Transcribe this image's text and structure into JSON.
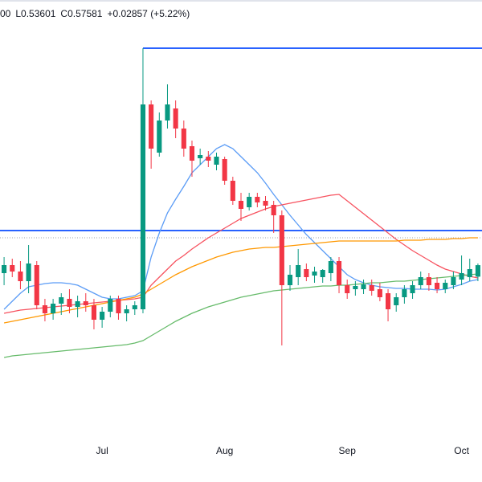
{
  "chart_data": {
    "type": "candlestick",
    "ohlc_legend": [
      "00",
      "L0.53601",
      "C0.57581",
      "+0.02857 (+5.22%)"
    ],
    "categories": [
      null,
      null,
      null,
      null,
      null,
      null,
      null,
      null,
      null,
      null,
      null,
      null,
      "Jul",
      null,
      null,
      null,
      null,
      null,
      null,
      null,
      null,
      null,
      null,
      null,
      null,
      null,
      null,
      "Aug",
      null,
      null,
      null,
      null,
      null,
      null,
      null,
      null,
      null,
      null,
      null,
      null,
      null,
      null,
      "Sep",
      null,
      null,
      null,
      null,
      null,
      null,
      null,
      null,
      null,
      null,
      null,
      null,
      null,
      "Oct",
      null,
      null
    ],
    "open": [
      0.556,
      0.576,
      0.56,
      0.536,
      0.576,
      0.476,
      0.456,
      0.48,
      0.492,
      0.472,
      0.486,
      0.476,
      0.44,
      0.46,
      0.492,
      0.456,
      0.466,
      0.466,
      0.976,
      0.856,
      0.936,
      0.966,
      0.916,
      0.872,
      0.842,
      0.846,
      0.826,
      0.84,
      0.786,
      0.736,
      0.72,
      0.746,
      0.736,
      0.726,
      0.7,
      0.526,
      0.546,
      0.566,
      0.55,
      0.546,
      0.556,
      0.586,
      0.526,
      0.516,
      0.516,
      0.526,
      0.516,
      0.506,
      0.476,
      0.496,
      0.506,
      0.526,
      0.546,
      0.532,
      0.516,
      0.526,
      0.54,
      0.546,
      0.54724
    ],
    "high": [
      0.596,
      0.592,
      0.586,
      0.626,
      0.586,
      0.492,
      0.492,
      0.506,
      0.516,
      0.5,
      0.506,
      0.492,
      0.472,
      0.5,
      0.5,
      0.476,
      0.486,
      1.116,
      0.986,
      0.956,
      1.026,
      0.986,
      0.936,
      0.886,
      0.866,
      0.86,
      0.856,
      0.846,
      0.796,
      0.756,
      0.756,
      0.756,
      0.748,
      0.736,
      0.712,
      0.576,
      0.616,
      0.58,
      0.572,
      0.566,
      0.596,
      0.596,
      0.54,
      0.536,
      0.54,
      0.54,
      0.532,
      0.516,
      0.506,
      0.526,
      0.536,
      0.56,
      0.556,
      0.546,
      0.54,
      0.56,
      0.6,
      0.592,
      0.58
    ],
    "low": [
      0.526,
      0.546,
      0.516,
      0.506,
      0.466,
      0.436,
      0.44,
      0.452,
      0.456,
      0.446,
      0.46,
      0.416,
      0.42,
      0.446,
      0.44,
      0.436,
      0.452,
      0.456,
      0.816,
      0.846,
      0.916,
      0.892,
      0.846,
      0.796,
      0.826,
      0.82,
      0.812,
      0.776,
      0.726,
      0.686,
      0.712,
      0.72,
      0.712,
      0.656,
      0.376,
      0.512,
      0.526,
      0.536,
      0.532,
      0.532,
      0.536,
      0.506,
      0.492,
      0.5,
      0.504,
      0.5,
      0.486,
      0.436,
      0.46,
      0.48,
      0.492,
      0.516,
      0.512,
      0.506,
      0.506,
      0.516,
      0.526,
      0.536,
      0.53601
    ],
    "close": [
      0.576,
      0.56,
      0.536,
      0.58,
      0.476,
      0.456,
      0.48,
      0.496,
      0.472,
      0.486,
      0.476,
      0.44,
      0.46,
      0.492,
      0.456,
      0.466,
      0.476,
      0.976,
      0.866,
      0.936,
      0.976,
      0.916,
      0.866,
      0.836,
      0.85,
      0.836,
      0.846,
      0.786,
      0.736,
      0.716,
      0.746,
      0.732,
      0.724,
      0.7,
      0.526,
      0.552,
      0.576,
      0.546,
      0.56,
      0.564,
      0.586,
      0.526,
      0.506,
      0.524,
      0.528,
      0.512,
      0.496,
      0.466,
      0.496,
      0.516,
      0.526,
      0.546,
      0.526,
      0.516,
      0.532,
      0.546,
      0.556,
      0.566,
      0.57581
    ],
    "up_color": "#089981",
    "down_color": "#f23645",
    "series": [
      {
        "color": "#5b9cf6",
        "values": [
          0.466,
          0.486,
          0.506,
          0.522,
          0.526,
          0.53,
          0.532,
          0.532,
          0.53,
          0.526,
          0.516,
          0.506,
          0.496,
          0.492,
          0.492,
          0.496,
          0.5,
          0.512,
          0.596,
          0.656,
          0.706,
          0.74,
          0.772,
          0.806,
          0.826,
          0.846,
          0.866,
          0.876,
          0.866,
          0.846,
          0.826,
          0.806,
          0.78,
          0.752,
          0.726,
          0.7,
          0.676,
          0.652,
          0.632,
          0.612,
          0.592,
          0.572,
          0.552,
          0.54,
          0.532,
          0.526,
          0.522,
          0.52,
          0.518,
          0.518,
          0.516,
          0.516,
          0.516,
          0.514,
          0.516,
          0.522,
          0.528,
          0.536,
          0.54
        ]
      },
      {
        "color": "#f7525f",
        "values": [
          0.456,
          0.46,
          0.464,
          0.466,
          0.468,
          0.47,
          0.472,
          0.474,
          0.476,
          0.478,
          0.48,
          0.482,
          0.484,
          0.486,
          0.488,
          0.49,
          0.492,
          0.496,
          0.526,
          0.546,
          0.566,
          0.586,
          0.6,
          0.616,
          0.63,
          0.644,
          0.656,
          0.668,
          0.68,
          0.692,
          0.7,
          0.708,
          0.716,
          0.722,
          0.726,
          0.73,
          0.734,
          0.738,
          0.742,
          0.746,
          0.75,
          0.752,
          0.736,
          0.72,
          0.704,
          0.688,
          0.672,
          0.656,
          0.64,
          0.626,
          0.612,
          0.6,
          0.588,
          0.576,
          0.566,
          0.56,
          0.554,
          0.548,
          0.544
        ]
      },
      {
        "color": "#ff9800",
        "values": [
          0.432,
          0.436,
          0.44,
          0.444,
          0.448,
          0.452,
          0.456,
          0.46,
          0.464,
          0.468,
          0.472,
          0.476,
          0.48,
          0.484,
          0.488,
          0.492,
          0.496,
          0.504,
          0.516,
          0.528,
          0.54,
          0.552,
          0.562,
          0.572,
          0.58,
          0.588,
          0.596,
          0.602,
          0.608,
          0.612,
          0.616,
          0.618,
          0.62,
          0.62,
          0.622,
          0.624,
          0.626,
          0.628,
          0.63,
          0.632,
          0.634,
          0.636,
          0.636,
          0.636,
          0.636,
          0.636,
          0.636,
          0.636,
          0.636,
          0.638,
          0.638,
          0.638,
          0.64,
          0.64,
          0.64,
          0.642,
          0.642,
          0.644,
          0.644
        ]
      },
      {
        "color": "#66bb6a",
        "values": [
          0.346,
          0.35,
          0.352,
          0.354,
          0.356,
          0.358,
          0.36,
          0.362,
          0.364,
          0.366,
          0.368,
          0.37,
          0.372,
          0.374,
          0.376,
          0.378,
          0.382,
          0.388,
          0.4,
          0.412,
          0.424,
          0.436,
          0.446,
          0.456,
          0.464,
          0.472,
          0.478,
          0.484,
          0.49,
          0.496,
          0.5,
          0.504,
          0.508,
          0.512,
          0.514,
          0.516,
          0.518,
          0.52,
          0.522,
          0.524,
          0.524,
          0.526,
          0.526,
          0.528,
          0.53,
          0.532,
          0.532,
          0.534,
          0.536,
          0.536,
          0.538,
          0.54,
          0.542,
          0.544,
          0.546,
          0.548,
          0.55,
          0.552,
          0.554
        ]
      }
    ],
    "hlines": [
      {
        "value": 1.116,
        "color": "#2962ff",
        "from": 17
      },
      {
        "value": 0.662,
        "color": "#2962ff"
      },
      {
        "value": 0.644,
        "color": "#9fa3ad",
        "dashed": true
      }
    ],
    "ylim": [
      0.136,
      1.236
    ]
  }
}
